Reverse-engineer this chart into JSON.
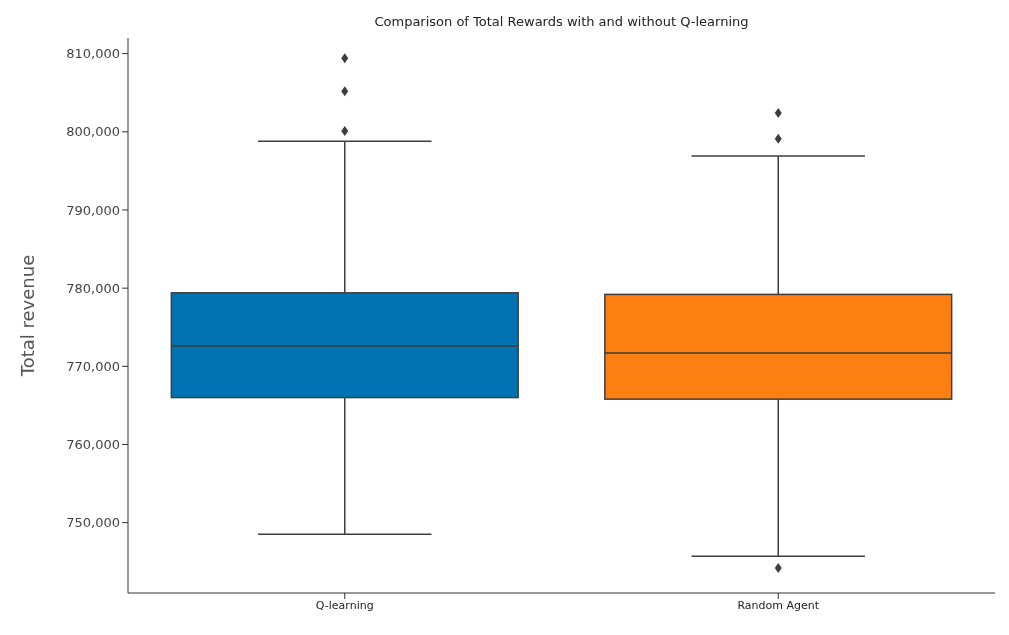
{
  "chart_data": {
    "type": "box",
    "title": "Comparison of Total Rewards with and without Q-learning",
    "ylabel": "Total revenue",
    "categories": [
      "Q-learning",
      "Random Agent"
    ],
    "colors": [
      "#0173b2",
      "#fd7f12"
    ],
    "boxes": [
      {
        "low": 748500,
        "q1": 766000,
        "median": 772600,
        "q3": 779400,
        "high": 798800,
        "outliers": [
          800100,
          805200,
          809400
        ]
      },
      {
        "low": 745700,
        "q1": 765800,
        "median": 771700,
        "q3": 779200,
        "high": 796900,
        "outliers": [
          744200,
          799100,
          802400
        ]
      }
    ],
    "ylim": [
      741000,
      812000
    ],
    "yticks": [
      {
        "value": 750000,
        "label": "750,000"
      },
      {
        "value": 760000,
        "label": "760,000"
      },
      {
        "value": 770000,
        "label": "770,000"
      },
      {
        "value": 780000,
        "label": "780,000"
      },
      {
        "value": 790000,
        "label": "790,000"
      },
      {
        "value": 800000,
        "label": "800,000"
      },
      {
        "value": 810000,
        "label": "810,000"
      }
    ],
    "grid": false
  }
}
